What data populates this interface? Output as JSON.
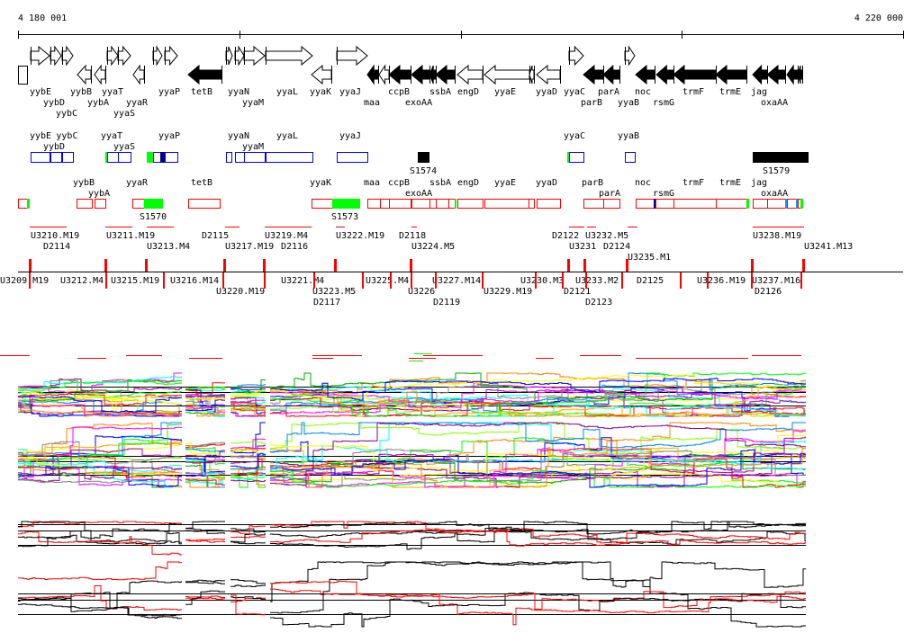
{
  "ruler": {
    "start_label": "4 180 001",
    "end_label": "4 220 000"
  },
  "genes": [
    "yybE",
    "yybC",
    "yybD",
    "yybB",
    "yybA",
    "yyaT",
    "yyaS",
    "yyaR",
    "yyaP",
    "tetB",
    "yyaN",
    "yyaM",
    "yyaL",
    "yyaK",
    "yyaJ",
    "maa",
    "ccpB",
    "exoAA",
    "ssbA",
    "engD",
    "yyaE",
    "yyaD",
    "yyaC",
    "parB",
    "parA",
    "yyaB",
    "noc",
    "rsmG",
    "trmF",
    "trmE",
    "oxaAA",
    "jag"
  ],
  "blue_track_labels": [
    "yybE",
    "yybD",
    "yybC",
    "yyaT",
    "yyaS",
    "yyaP",
    "yyaN",
    "yyaM",
    "yyaL",
    "yyaJ",
    "yyaC",
    "yyaB"
  ],
  "blue_track_features": [
    "S1574",
    "S1579"
  ],
  "red_track_labels": [
    "yybB",
    "yybA",
    "yyaR",
    "tetB",
    "yyaK",
    "maa",
    "ccpB",
    "exoAA",
    "ssbA",
    "engD",
    "yyaE",
    "yyaD",
    "parB",
    "parA",
    "noc",
    "rsmG",
    "trmF",
    "trmE",
    "jag",
    "oxaAA"
  ],
  "red_track_features": [
    "S1570",
    "S1573"
  ],
  "transcripts_above": [
    "U3210.M19",
    "U3211.M19",
    "U3213.M4",
    "U3217.M19",
    "U3219.M4",
    "U3222.M19",
    "U3224.M5",
    "U3231",
    "U3232.M5",
    "U3235.M1",
    "U3238.M19",
    "U3241.M13"
  ],
  "transcripts_d_above": [
    "D2114",
    "D2115",
    "D2116",
    "D2118",
    "D2122",
    "D2124"
  ],
  "transcripts_d_below": [
    "D2117",
    "D2119",
    "D2121",
    "D2123",
    "D2125",
    "D2126"
  ],
  "transcripts_below": [
    "U3209.M19",
    "U3212.M4",
    "U3215.M19",
    "U3216.M14",
    "U3220.M19",
    "U3221.M4",
    "U3223.M5",
    "U3225.M4",
    "U3226",
    "U3227.M14",
    "U3229.M19",
    "U3230.M3",
    "U3233.M2",
    "U3236.M19",
    "U3237.M16"
  ]
}
